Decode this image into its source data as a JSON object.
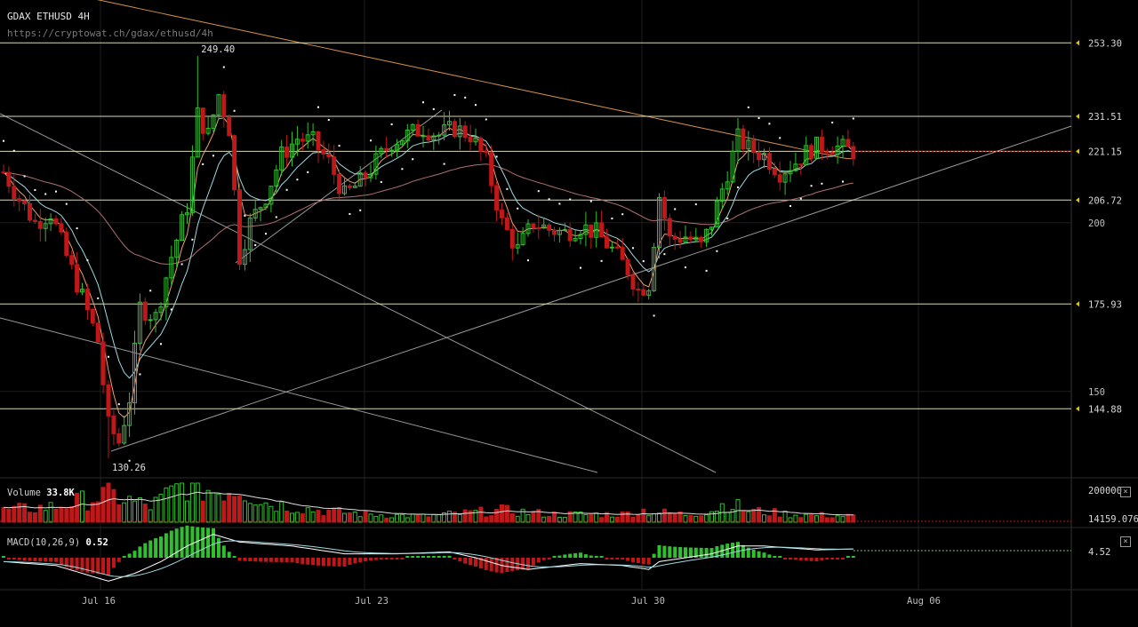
{
  "header": {
    "title": "GDAX ETHUSD 4H",
    "url": "https://cryptowat.ch/gdax/ethusd/4h"
  },
  "colors": {
    "background": "#000000",
    "up": "#2fbf2f",
    "down": "#c01818",
    "ema_fast": "#e8a070",
    "ema_slow": "#9fd8e0",
    "ma_long": "#b07070",
    "ma_200": "#d4914a",
    "psar": "#ffffff",
    "level": "#f0f0c8",
    "marker": "#e6c200"
  },
  "chart_data": {
    "type": "candlestick",
    "symbol": "ETHUSD",
    "exchange": "GDAX",
    "interval": "4H",
    "price_ylim": [
      126,
      266
    ],
    "price_ticks": [
      200,
      150
    ],
    "levels": [
      253.3,
      231.51,
      221.15,
      206.72,
      175.93,
      144.88
    ],
    "level_labels": [
      "253.30",
      "231.51",
      "221.15",
      "206.72",
      "175.93",
      "144.88"
    ],
    "annotations": [
      {
        "text": "249.40",
        "value": 249.4
      },
      {
        "text": "130.26",
        "value": 130.26
      }
    ],
    "x_labels": [
      "Jul 16",
      "Jul 23",
      "Jul 30",
      "Aug 06"
    ],
    "volume": {
      "label": "Volume",
      "value_text": "33.8K",
      "ticks": [
        "200000",
        "14159.076"
      ],
      "max": 200000
    },
    "macd": {
      "label": "MACD(10,26,9)",
      "value_text": "0.52",
      "tick": "4.52"
    },
    "price_anchors": [
      [
        0,
        215
      ],
      [
        3,
        207
      ],
      [
        6,
        200
      ],
      [
        9,
        203
      ],
      [
        12,
        190
      ],
      [
        15,
        178
      ],
      [
        18,
        165
      ],
      [
        20,
        140
      ],
      [
        22,
        135
      ],
      [
        24,
        148
      ],
      [
        26,
        175
      ],
      [
        29,
        172
      ],
      [
        32,
        190
      ],
      [
        35,
        205
      ],
      [
        37,
        232
      ],
      [
        39,
        226
      ],
      [
        41,
        238
      ],
      [
        43,
        228
      ],
      [
        45,
        190
      ],
      [
        47,
        200
      ],
      [
        50,
        208
      ],
      [
        53,
        220
      ],
      [
        56,
        225
      ],
      [
        59,
        224
      ],
      [
        62,
        218
      ],
      [
        65,
        208
      ],
      [
        68,
        212
      ],
      [
        71,
        218
      ],
      [
        74,
        224
      ],
      [
        77,
        226
      ],
      [
        80,
        228
      ],
      [
        83,
        226
      ],
      [
        86,
        228
      ],
      [
        89,
        226
      ],
      [
        92,
        218
      ],
      [
        95,
        200
      ],
      [
        98,
        192
      ],
      [
        101,
        200
      ],
      [
        104,
        198
      ],
      [
        107,
        197
      ],
      [
        110,
        199
      ],
      [
        113,
        197
      ],
      [
        116,
        192
      ],
      [
        119,
        186
      ],
      [
        121,
        180
      ],
      [
        123,
        182
      ],
      [
        125,
        208
      ],
      [
        127,
        195
      ],
      [
        130,
        196
      ],
      [
        133,
        193
      ],
      [
        135,
        200
      ],
      [
        138,
        215
      ],
      [
        140,
        225
      ],
      [
        142,
        222
      ],
      [
        145,
        220
      ],
      [
        148,
        215
      ],
      [
        151,
        218
      ],
      [
        154,
        222
      ],
      [
        157,
        223
      ],
      [
        160,
        222
      ],
      [
        162,
        221.15
      ]
    ],
    "volume_anchors": [
      [
        0,
        0.3
      ],
      [
        10,
        0.4
      ],
      [
        20,
        0.7
      ],
      [
        28,
        0.4
      ],
      [
        35,
        1.0
      ],
      [
        40,
        0.8
      ],
      [
        45,
        0.9
      ],
      [
        50,
        0.5
      ],
      [
        55,
        0.4
      ],
      [
        60,
        0.3
      ],
      [
        65,
        0.25
      ],
      [
        70,
        0.2
      ],
      [
        80,
        0.15
      ],
      [
        85,
        0.2
      ],
      [
        90,
        0.25
      ],
      [
        95,
        0.3
      ],
      [
        100,
        0.25
      ],
      [
        105,
        0.2
      ],
      [
        110,
        0.2
      ],
      [
        118,
        0.2
      ],
      [
        122,
        0.3
      ],
      [
        125,
        0.25
      ],
      [
        130,
        0.2
      ],
      [
        135,
        0.3
      ],
      [
        138,
        0.5
      ],
      [
        142,
        0.3
      ],
      [
        150,
        0.2
      ],
      [
        162,
        0.15
      ]
    ],
    "macd_anchors": [
      [
        0,
        -2
      ],
      [
        10,
        -4
      ],
      [
        15,
        -8
      ],
      [
        20,
        -12
      ],
      [
        25,
        -8
      ],
      [
        30,
        -2
      ],
      [
        35,
        6
      ],
      [
        40,
        12
      ],
      [
        45,
        8
      ],
      [
        55,
        6
      ],
      [
        65,
        2
      ],
      [
        75,
        2
      ],
      [
        85,
        3
      ],
      [
        90,
        0
      ],
      [
        95,
        -4
      ],
      [
        100,
        -6
      ],
      [
        110,
        -3
      ],
      [
        118,
        -4
      ],
      [
        123,
        -6
      ],
      [
        125,
        -2
      ],
      [
        130,
        0
      ],
      [
        135,
        2
      ],
      [
        140,
        6
      ],
      [
        145,
        6
      ],
      [
        155,
        4
      ],
      [
        162,
        4.5
      ]
    ]
  }
}
